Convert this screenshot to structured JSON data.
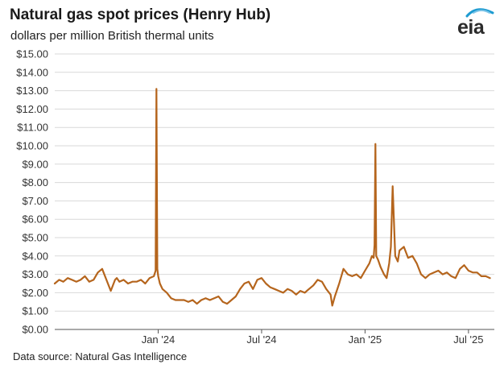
{
  "header": {
    "title": "Natural gas spot prices (Henry Hub)",
    "subtitle": "dollars per million British thermal units",
    "logo_text": "eia"
  },
  "footer": {
    "source": "Data source: Natural Gas Intelligence"
  },
  "colors": {
    "series": "#b5651d",
    "axis": "#555555",
    "grid": "#d9d9d9",
    "logo_arc": "#1d9bd1"
  },
  "chart_data": {
    "type": "line",
    "title": "Natural gas spot prices (Henry Hub)",
    "ylabel": "dollars per million British thermal units",
    "xlabel": "",
    "ylim": [
      0,
      15
    ],
    "yticks": [
      0,
      1,
      2,
      3,
      4,
      5,
      6,
      7,
      8,
      9,
      10,
      11,
      12,
      13,
      14,
      15
    ],
    "ytick_labels": [
      "$0.00",
      "$1.00",
      "$2.00",
      "$3.00",
      "$4.00",
      "$5.00",
      "$6.00",
      "$7.00",
      "$8.00",
      "$9.00",
      "$10.00",
      "$11.00",
      "$12.00",
      "$13.00",
      "$14.00",
      "$15.00"
    ],
    "x_unit": "months since 2023-07-01",
    "xlim": [
      0,
      25.5
    ],
    "xticks": [
      {
        "x": 6,
        "label": "Jan '24"
      },
      {
        "x": 12,
        "label": "Jul '24"
      },
      {
        "x": 18,
        "label": "Jan '25"
      },
      {
        "x": 24,
        "label": "Jul '25"
      }
    ],
    "grid": true,
    "series": [
      {
        "name": "Henry Hub spot price",
        "x": [
          0.0,
          0.25,
          0.5,
          0.75,
          1.0,
          1.25,
          1.5,
          1.75,
          2.0,
          2.25,
          2.5,
          2.75,
          3.0,
          3.25,
          3.5,
          3.6,
          3.75,
          4.0,
          4.25,
          4.5,
          4.75,
          5.0,
          5.25,
          5.5,
          5.75,
          5.85,
          5.9,
          5.95,
          6.0,
          6.1,
          6.25,
          6.5,
          6.75,
          7.0,
          7.25,
          7.5,
          7.75,
          8.0,
          8.25,
          8.5,
          8.75,
          9.0,
          9.25,
          9.5,
          9.75,
          10.0,
          10.25,
          10.5,
          10.75,
          11.0,
          11.25,
          11.5,
          11.75,
          12.0,
          12.25,
          12.5,
          12.75,
          13.0,
          13.25,
          13.5,
          13.75,
          14.0,
          14.25,
          14.5,
          14.75,
          15.0,
          15.25,
          15.5,
          15.75,
          16.0,
          16.1,
          16.25,
          16.5,
          16.75,
          17.0,
          17.25,
          17.5,
          17.75,
          18.0,
          18.25,
          18.4,
          18.5,
          18.55,
          18.6,
          18.65,
          18.75,
          18.9,
          19.1,
          19.25,
          19.4,
          19.5,
          19.6,
          19.75,
          19.9,
          20.0,
          20.25,
          20.5,
          20.75,
          21.0,
          21.25,
          21.5,
          21.75,
          22.0,
          22.25,
          22.5,
          22.75,
          23.0,
          23.25,
          23.5,
          23.75,
          24.0,
          24.25,
          24.5,
          24.75,
          25.0,
          25.25
        ],
        "y": [
          2.5,
          2.7,
          2.6,
          2.8,
          2.7,
          2.6,
          2.7,
          2.9,
          2.6,
          2.7,
          3.1,
          3.3,
          2.7,
          2.1,
          2.7,
          2.8,
          2.6,
          2.7,
          2.5,
          2.6,
          2.6,
          2.7,
          2.5,
          2.8,
          2.9,
          3.2,
          13.1,
          3.3,
          2.9,
          2.5,
          2.2,
          2.0,
          1.7,
          1.6,
          1.6,
          1.6,
          1.5,
          1.6,
          1.4,
          1.6,
          1.7,
          1.6,
          1.7,
          1.8,
          1.5,
          1.4,
          1.6,
          1.8,
          2.2,
          2.5,
          2.6,
          2.2,
          2.7,
          2.8,
          2.5,
          2.3,
          2.2,
          2.1,
          2.0,
          2.2,
          2.1,
          1.9,
          2.1,
          2.0,
          2.2,
          2.4,
          2.7,
          2.6,
          2.2,
          1.9,
          1.3,
          1.8,
          2.5,
          3.3,
          3.0,
          2.9,
          3.0,
          2.8,
          3.2,
          3.6,
          4.0,
          3.9,
          4.6,
          10.1,
          4.0,
          3.8,
          3.4,
          3.0,
          2.8,
          3.6,
          4.5,
          7.8,
          4.0,
          3.7,
          4.3,
          4.5,
          3.9,
          4.0,
          3.6,
          3.0,
          2.8,
          3.0,
          3.1,
          3.2,
          3.0,
          3.1,
          2.9,
          2.8,
          3.3,
          3.5,
          3.2,
          3.1,
          3.1,
          2.9,
          2.9,
          2.8
        ]
      }
    ]
  }
}
